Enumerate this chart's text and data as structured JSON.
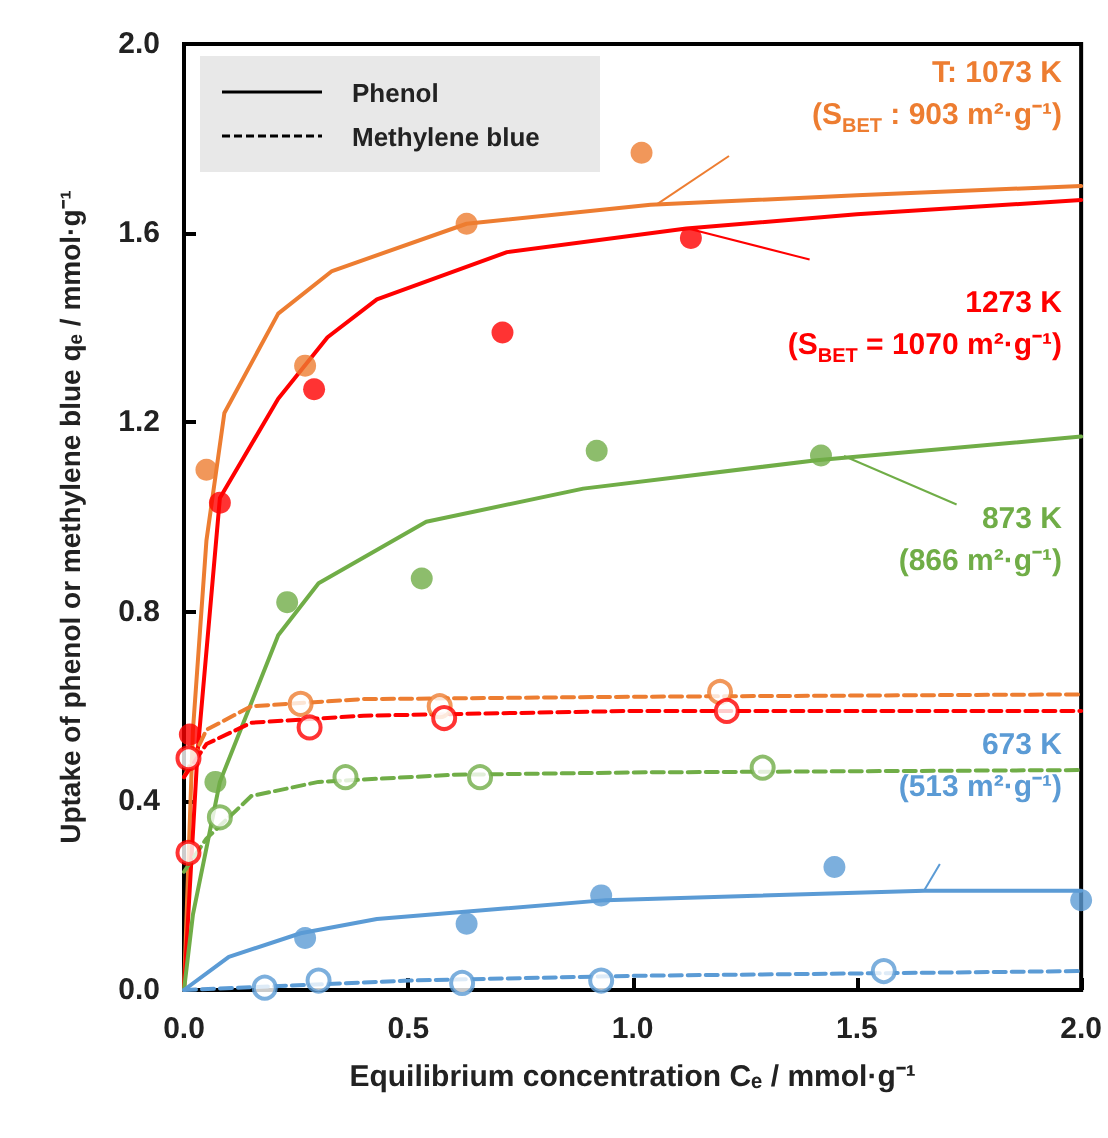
{
  "chart_data": {
    "type": "scatter",
    "xlabel": "Equilibrium concentration Cₑ / mmol·g⁻¹",
    "ylabel": "Uptake of phenol or methylene blue qₑ / mmol·g⁻¹",
    "xlim": [
      0,
      2
    ],
    "xticks": [
      {
        "value": 0,
        "label": "0.0"
      },
      {
        "value": 0.5,
        "label": "0.5"
      },
      {
        "value": 1,
        "label": "1.0"
      },
      {
        "value": 1.5,
        "label": "1.5"
      },
      {
        "value": 2,
        "label": "2.0"
      }
    ],
    "ylim": [
      0,
      2
    ],
    "yticks": [
      {
        "value": 0,
        "label": "0.0"
      },
      {
        "value": 0.4,
        "label": "0.4"
      },
      {
        "value": 0.8,
        "label": "0.8"
      },
      {
        "value": 1.2,
        "label": "1.2"
      },
      {
        "value": 1.6,
        "label": "1.6"
      },
      {
        "value": 2,
        "label": "2.0"
      }
    ],
    "grid": false,
    "legend": "right",
    "marker": "circle",
    "annotations": [
      "Phenol",
      "Methylene blue"
    ],
    "series": [
      {
        "type": "line",
        "color": "#ed7d31",
        "line_style": "solid",
        "marker": "none",
        "x": [
          0,
          0.02,
          0.05,
          0.09,
          0.21,
          0.33,
          0.63,
          1.04,
          1.5,
          2.0
        ],
        "values": [
          0,
          0.55,
          0.95,
          1.22,
          1.43,
          1.52,
          1.62,
          1.66,
          1.68,
          1.7
        ]
      },
      {
        "type": "line",
        "color": "#ff0000",
        "line_style": "solid",
        "marker": "none",
        "x": [
          0,
          0.03,
          0.08,
          0.21,
          0.32,
          0.43,
          0.72,
          1.12,
          1.5,
          2.0
        ],
        "values": [
          0,
          0.5,
          1.04,
          1.25,
          1.38,
          1.46,
          1.56,
          1.61,
          1.64,
          1.67
        ]
      },
      {
        "type": "line",
        "color": "#70ad47",
        "line_style": "solid",
        "marker": "none",
        "x": [
          0,
          0.02,
          0.08,
          0.21,
          0.3,
          0.54,
          0.89,
          1.41,
          2.0
        ],
        "values": [
          0,
          0.16,
          0.44,
          0.75,
          0.86,
          0.99,
          1.06,
          1.12,
          1.17
        ]
      },
      {
        "type": "line",
        "color": "#5b9bd5",
        "line_style": "solid",
        "marker": "none",
        "x": [
          0,
          0.1,
          0.26,
          0.43,
          0.94,
          1.65,
          2.0
        ],
        "values": [
          0,
          0.07,
          0.12,
          0.15,
          0.19,
          0.21,
          0.21
        ]
      },
      {
        "type": "line",
        "color": "#ed7d31",
        "line_style": "dashed",
        "marker": "none",
        "x": [
          0,
          0.05,
          0.15,
          0.4,
          1.0,
          2.0
        ],
        "values": [
          0.45,
          0.55,
          0.6,
          0.615,
          0.62,
          0.625
        ]
      },
      {
        "type": "line",
        "color": "#ff0000",
        "line_style": "dashed",
        "marker": "none",
        "x": [
          0,
          0.05,
          0.15,
          0.4,
          1.0,
          2.0
        ],
        "values": [
          0.45,
          0.52,
          0.565,
          0.58,
          0.59,
          0.59
        ]
      },
      {
        "type": "line",
        "color": "#70ad47",
        "line_style": "dashed",
        "marker": "none",
        "x": [
          0,
          0.05,
          0.15,
          0.3,
          0.6,
          1.0,
          2.0
        ],
        "values": [
          0.25,
          0.32,
          0.41,
          0.44,
          0.455,
          0.46,
          0.465
        ]
      },
      {
        "type": "line",
        "color": "#5b9bd5",
        "line_style": "dashed",
        "marker": "none",
        "x": [
          0,
          0.5,
          1.0,
          2.0
        ],
        "values": [
          0,
          0.02,
          0.03,
          0.04
        ]
      },
      {
        "name": "T: 1073 K\n(S$_{BET}$ : 903 m²·g⁻¹)",
        "color": "#ed7d31",
        "x": [
          0.05,
          0.27,
          0.63,
          1.02
        ],
        "values": [
          1.1,
          1.32,
          1.62,
          1.77
        ]
      },
      {
        "name": "1273 K\n(S$_{BET}$ = 1070 m²·g⁻¹)",
        "color": "#ff0000",
        "x": [
          0.013,
          0.08,
          0.29,
          0.71,
          1.13
        ],
        "values": [
          0.54,
          1.03,
          1.27,
          1.39,
          1.59
        ]
      },
      {
        "name": "873 K\n(866 m²·g⁻¹)",
        "color": "#70ad47",
        "x": [
          0.07,
          0.23,
          0.53,
          0.92,
          1.42
        ],
        "values": [
          0.44,
          0.82,
          0.87,
          1.14,
          1.13
        ]
      },
      {
        "name": "673 K\n(513 m²·g⁻¹)",
        "color": "#5b9bd5",
        "x": [
          0.27,
          0.63,
          0.93,
          1.45,
          2.0
        ],
        "values": [
          0.11,
          0.14,
          0.2,
          0.26,
          0.19
        ]
      },
      {
        "marker": "open circle",
        "color": "#ed7d31",
        "x": [
          0.26,
          0.57,
          1.195
        ],
        "values": [
          0.605,
          0.6,
          0.63
        ]
      },
      {
        "marker": "open circle",
        "color": "#ff0000",
        "x": [
          0.01,
          0.01,
          0.28,
          0.58,
          1.21
        ],
        "values": [
          0.29,
          0.49,
          0.555,
          0.575,
          0.59
        ]
      },
      {
        "marker": "open circle",
        "color": "#70ad47",
        "x": [
          0.08,
          0.36,
          0.66,
          1.29
        ],
        "values": [
          0.365,
          0.45,
          0.45,
          0.47
        ]
      },
      {
        "marker": "open circle",
        "color": "#5b9bd5",
        "x": [
          0.18,
          0.3,
          0.62,
          0.93,
          1.56
        ],
        "values": [
          0.005,
          0.02,
          0.015,
          0.02,
          0.04
        ]
      }
    ]
  }
}
